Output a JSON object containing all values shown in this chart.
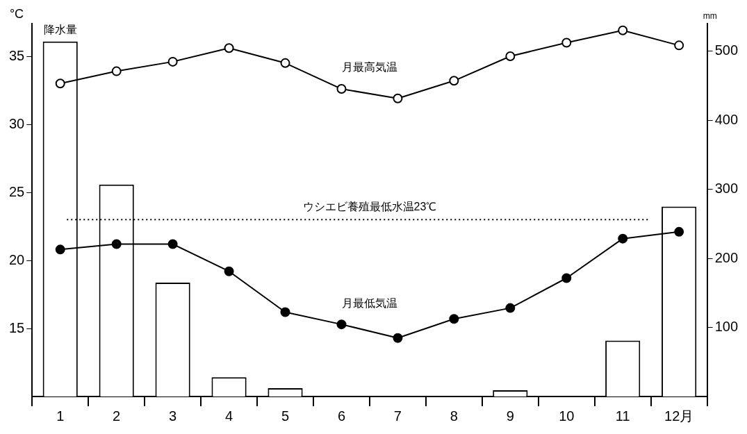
{
  "chart_data": {
    "type": "bar",
    "categories": [
      "1",
      "2",
      "3",
      "4",
      "5",
      "6",
      "7",
      "8",
      "9",
      "10",
      "11",
      "12月"
    ],
    "ylabel": "°C",
    "y2label": "mm",
    "ylim": [
      10,
      37.4
    ],
    "yticks": [
      15,
      20,
      25,
      30,
      35
    ],
    "y2lim": [
      0,
      540
    ],
    "y2ticks": [
      100,
      200,
      300,
      400,
      500
    ],
    "grid": false,
    "legend": false,
    "marker": "circle",
    "line_style": "solid",
    "series": [
      {
        "name": "降水量",
        "axis": "y2",
        "color": "#ffffff",
        "values": [
          514,
          307,
          165,
          28,
          12,
          0,
          0,
          0,
          9,
          0,
          81,
          275
        ]
      },
      {
        "name": "月最高気温",
        "type": "line",
        "color": "#000000",
        "values": [
          33.0,
          33.9,
          34.6,
          35.6,
          34.5,
          32.6,
          31.9,
          33.2,
          35.0,
          36.0,
          36.9,
          35.8
        ]
      },
      {
        "name": "月最低気温",
        "type": "line",
        "color": "#000000",
        "values": [
          20.8,
          21.2,
          21.2,
          19.2,
          16.2,
          15.3,
          14.3,
          15.7,
          16.5,
          18.7,
          21.6,
          22.1
        ]
      }
    ],
    "ref_lines": [
      {
        "axis": "y",
        "value": 23,
        "label": "ウシエビ養殖最低水温23℃",
        "line_style": "dotted",
        "color": "#000000"
      }
    ]
  }
}
